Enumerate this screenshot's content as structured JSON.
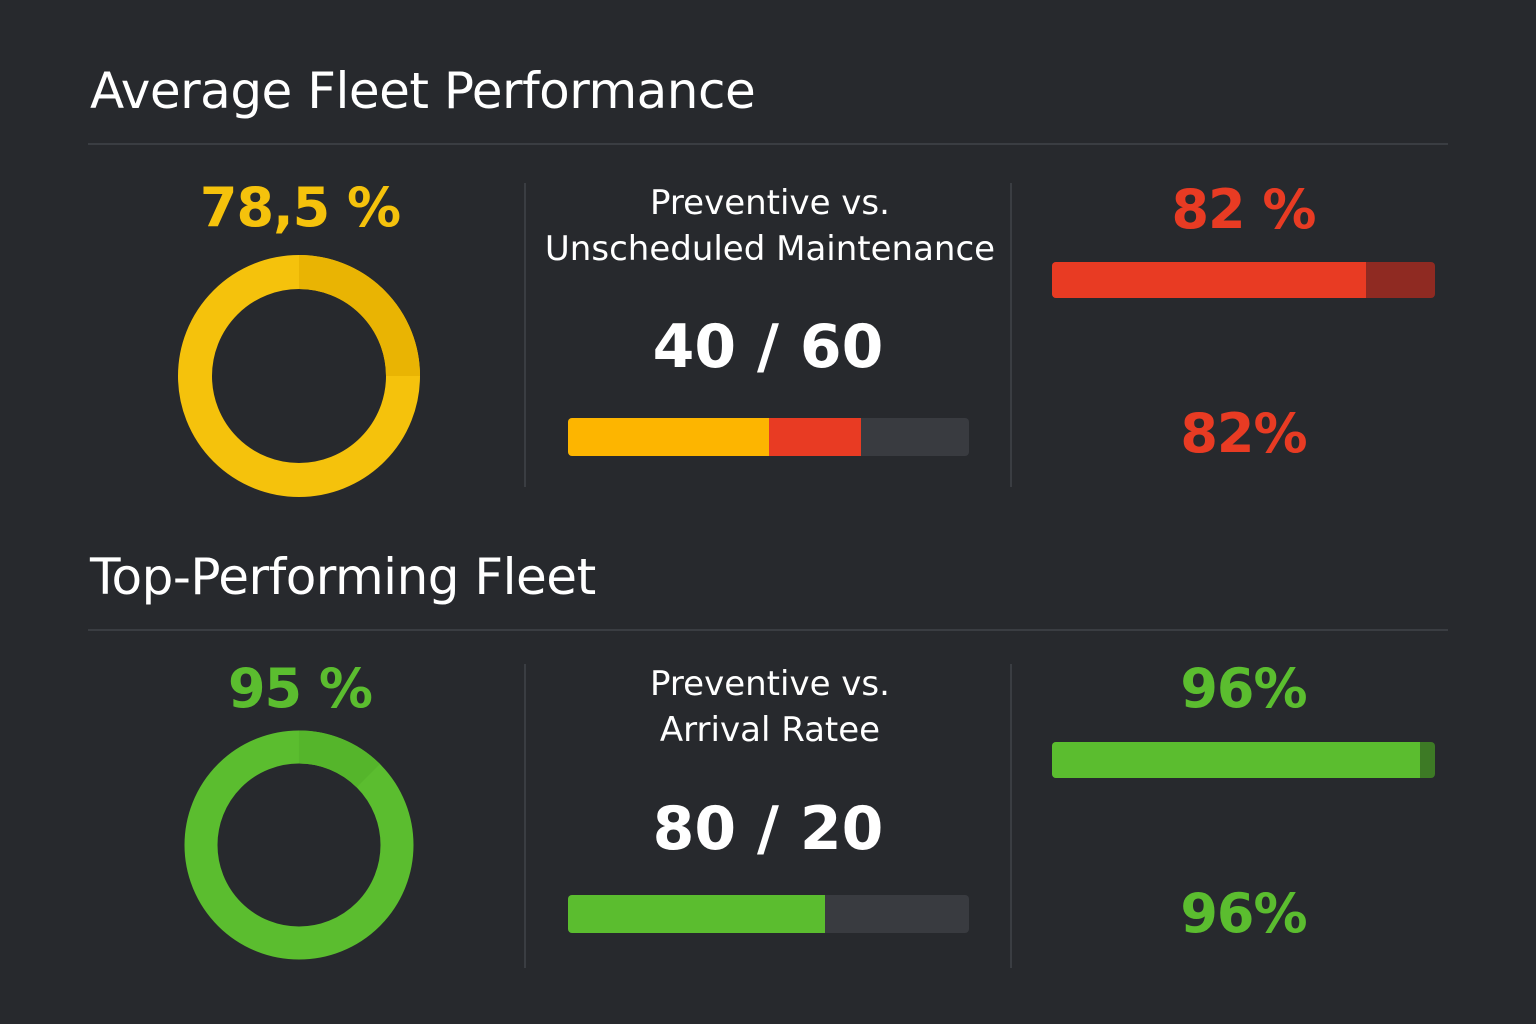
{
  "colors": {
    "background": "#27292d",
    "divider": "#3a3d42",
    "track": "#393b40",
    "yellow": "#f5c20c",
    "yellow_dark": "#e9b403",
    "orange": "#fdb500",
    "red": "#e83b23",
    "red_dark": "#8f2a22",
    "green": "#5bbd2f",
    "green_dark": "#3d7a25"
  },
  "sections": [
    {
      "title": "Average Fleet Performance",
      "score": {
        "label": "78,5 %",
        "value": 78.5,
        "color": "yellow"
      },
      "comparison": {
        "title_lines": [
          "Preventive vs.",
          "Unscheduled Maintenance"
        ],
        "ratio_label": "40 / 60",
        "segments": [
          {
            "value": 50,
            "color": "orange"
          },
          {
            "value": 23,
            "color": "red"
          }
        ]
      },
      "metric": {
        "top_label": "82 %",
        "bottom_label": "82%",
        "value": 82,
        "color": "red",
        "track_color": "red_dark"
      }
    },
    {
      "title": "Top-Performing Fleet",
      "score": {
        "label": "95 %",
        "value": 95,
        "color": "green"
      },
      "comparison": {
        "title_lines": [
          "Preventive vs.",
          "Arrival Ratee"
        ],
        "ratio_label": "80 / 20",
        "segments": [
          {
            "value": 64,
            "color": "green"
          }
        ]
      },
      "metric": {
        "top_label": "96%",
        "bottom_label": "96%",
        "value": 96,
        "color": "green",
        "track_color": "green_dark"
      }
    }
  ]
}
